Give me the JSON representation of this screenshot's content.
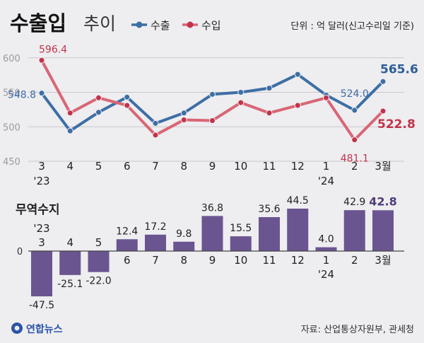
{
  "title_bold": "수출입",
  "title_light": "추이",
  "unit_note": "단위 : 억 달러(신고수리일 기준)",
  "legend": [
    {
      "label": "수출",
      "color": "#3d6ea5"
    },
    {
      "label": "수입",
      "color": "#d86675"
    }
  ],
  "balance_title": "무역수지",
  "source": "자료: 산업통상자원부, 관세청",
  "logo_text": "연합뉴스",
  "colors": {
    "export": "#3d6ea5",
    "import": "#d86675",
    "bar": "#6a5591",
    "grid": "#c9c8cc",
    "axis": "#444444"
  },
  "chart_data": [
    {
      "type": "line",
      "x_labels": [
        "3",
        "4",
        "5",
        "6",
        "7",
        "8",
        "9",
        "10",
        "11",
        "12",
        "1",
        "2",
        "3월"
      ],
      "year_labels": [
        {
          "index": 0,
          "text": "'23"
        },
        {
          "index": 10,
          "text": "'24"
        }
      ],
      "yticks": [
        450,
        500,
        550,
        600
      ],
      "ylim": [
        450,
        610
      ],
      "series": [
        {
          "name": "수출",
          "values": [
            548.8,
            494,
            521,
            543,
            505,
            520,
            547,
            550,
            556,
            576,
            546,
            524.0,
            565.6
          ]
        },
        {
          "name": "수입",
          "values": [
            596.4,
            520,
            542,
            531,
            488,
            510,
            509,
            535,
            520,
            531,
            542,
            481.1,
            522.8
          ]
        }
      ],
      "value_labels": [
        {
          "series": 0,
          "index": 0,
          "text": "548.8"
        },
        {
          "series": 1,
          "index": 0,
          "text": "596.4"
        },
        {
          "series": 0,
          "index": 11,
          "text": "524.0"
        },
        {
          "series": 1,
          "index": 11,
          "text": "481.1"
        },
        {
          "series": 0,
          "index": 12,
          "text": "565.6"
        },
        {
          "series": 1,
          "index": 12,
          "text": "522.8"
        }
      ]
    },
    {
      "type": "bar",
      "title": "무역수지",
      "categories": [
        "3",
        "4",
        "5",
        "6",
        "7",
        "8",
        "9",
        "10",
        "11",
        "12",
        "1",
        "2",
        "3월"
      ],
      "year_labels": [
        {
          "index": 0,
          "text": "'23"
        },
        {
          "index": 10,
          "text": "'24"
        }
      ],
      "values": [
        -47.5,
        -25.1,
        -22.0,
        12.4,
        17.2,
        9.8,
        36.8,
        15.5,
        35.6,
        44.5,
        4.0,
        42.9,
        42.8
      ],
      "value_labels": [
        "-47.5",
        "-25.1",
        "-22.0",
        "12.4",
        "17.2",
        "9.8",
        "36.8",
        "15.5",
        "35.6",
        "44.5",
        "4.0",
        "42.9",
        "42.8"
      ],
      "zero_label": "0"
    }
  ]
}
